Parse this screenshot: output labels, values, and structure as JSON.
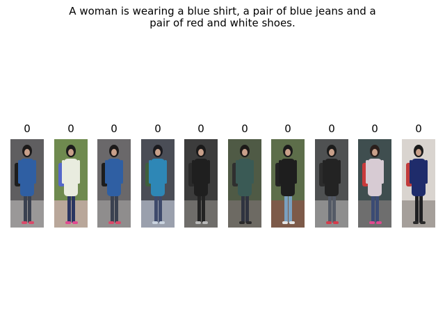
{
  "caption": {
    "line1": "A woman is wearing a blue shirt, a pair of blue jeans and a",
    "line2": "pair of red and white shoes."
  },
  "gallery": {
    "items": [
      {
        "score": "0",
        "bg": "#5f5e60",
        "ground": "#9a9898",
        "hair": "#1c1a1a",
        "top": "#2f5fa3",
        "bottom": "#3a4150",
        "shoe": "#d94a6a",
        "bag": "#1d1d1d"
      },
      {
        "score": "0",
        "bg": "#6f8a4f",
        "ground": "#b9a79a",
        "hair": "#1b1b1b",
        "top": "#e9ecdf",
        "bottom": "#2b3561",
        "shoe": "#e04a8f",
        "bag": "#5567c9"
      },
      {
        "score": "0",
        "bg": "#6a686a",
        "ground": "#8f8d8d",
        "hair": "#1c1a1a",
        "top": "#2f5fa3",
        "bottom": "#3a4150",
        "shoe": "#d94a6a",
        "bag": "#1d1d1d"
      },
      {
        "score": "0",
        "bg": "#4a4d56",
        "ground": "#9aa0ad",
        "hair": "#1a1a1f",
        "top": "#2e87b6",
        "bottom": "#3e4a6b",
        "shoe": "#c9d3df",
        "bag": "#3f5f3d"
      },
      {
        "score": "0",
        "bg": "#3c3c3c",
        "ground": "#6f6d6a",
        "hair": "#1a1919",
        "top": "#1f1f1f",
        "bottom": "#232323",
        "shoe": "#b9b9b9",
        "bag": "#2a2a2a"
      },
      {
        "score": "0",
        "bg": "#4f5a45",
        "ground": "#6d6a63",
        "hair": "#1c1a18",
        "top": "#3a5a55",
        "bottom": "#2f3340",
        "shoe": "#2a2a2a",
        "bag": "#2f2f2f"
      },
      {
        "score": "0",
        "bg": "#5d6e4a",
        "ground": "#7d5a49",
        "hair": "#1b1b1b",
        "top": "#1e1e1e",
        "bottom": "#7aa0c0",
        "shoe": "#e4e4e4",
        "bag": "#232323"
      },
      {
        "score": "0",
        "bg": "#4f5152",
        "ground": "#8e8e8e",
        "hair": "#1b1b1b",
        "top": "#232323",
        "bottom": "#545a66",
        "shoe": "#d43b4b",
        "bag": "#2c2c2c"
      },
      {
        "score": "0",
        "bg": "#3f4e4f",
        "ground": "#6e6e6e",
        "hair": "#2a1f1c",
        "top": "#d7cbd3",
        "bottom": "#3b4b74",
        "shoe": "#e04a8f",
        "bag": "#c93b3b"
      },
      {
        "score": "0",
        "bg": "#d9d4cf",
        "ground": "#a59f9a",
        "hair": "#1b1b1b",
        "top": "#1f2c6b",
        "bottom": "#1f1f22",
        "shoe": "#2a2a2a",
        "bag": "#c23b3b"
      }
    ]
  }
}
